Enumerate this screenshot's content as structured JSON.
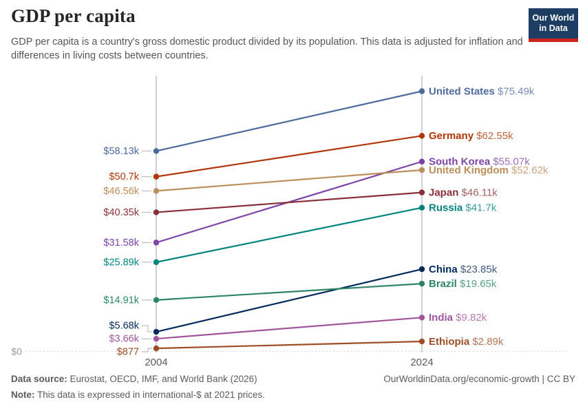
{
  "header": {
    "title": "GDP per capita",
    "subtitle": "GDP per capita is a country's gross domestic product divided by its population. This data is adjusted for inflation and differences in living costs between countries.",
    "logo": {
      "line1": "Our World",
      "line2": "in Data",
      "bg_color": "#1D3D63",
      "accent_color": "#D0241E"
    }
  },
  "chart_data": {
    "type": "line",
    "subtype": "slope",
    "x": [
      "2004",
      "2024"
    ],
    "ylim": [
      0,
      80000
    ],
    "grid": "baseline-dotted-only",
    "zero_label": "$0",
    "legend_position": "end-of-line-labels",
    "series": [
      {
        "name": "United States",
        "color": "#4C6A9C",
        "values": [
          58130,
          75490
        ],
        "start_label": "$58.13k",
        "end_label": "$75.49k"
      },
      {
        "name": "Germany",
        "color": "#B13507",
        "values": [
          50700,
          62550
        ],
        "start_label": "$50.7k",
        "end_label": "$62.55k"
      },
      {
        "name": "South Korea",
        "color": "#7E43A8",
        "values": [
          31580,
          55070
        ],
        "start_label": "$31.58k",
        "end_label": "$55.07k"
      },
      {
        "name": "United Kingdom",
        "color": "#BC8E5A",
        "values": [
          46560,
          52620
        ],
        "start_label": "$46.56k",
        "end_label": "$52.62k"
      },
      {
        "name": "Japan",
        "color": "#883039",
        "values": [
          40350,
          46110
        ],
        "start_label": "$40.35k",
        "end_label": "$46.11k"
      },
      {
        "name": "Russia",
        "color": "#00847E",
        "values": [
          25890,
          41700
        ],
        "start_label": "$25.89k",
        "end_label": "$41.7k"
      },
      {
        "name": "China",
        "color": "#00295B",
        "values": [
          5680,
          23850
        ],
        "start_label": "$5.68k",
        "end_label": "$23.85k",
        "start_label_dy": -9
      },
      {
        "name": "Brazil",
        "color": "#2C8565",
        "values": [
          14910,
          19650
        ],
        "start_label": "$14.91k",
        "end_label": "$19.65k"
      },
      {
        "name": "India",
        "color": "#A2559C",
        "values": [
          3660,
          9820
        ],
        "start_label": "$3.66k",
        "end_label": "$9.82k"
      },
      {
        "name": "Ethiopia",
        "color": "#9E4E27",
        "values": [
          877,
          2890
        ],
        "start_label": "$877",
        "end_label": "$2.89k",
        "start_label_dy": 5
      }
    ]
  },
  "footer": {
    "data_source_label": "Data source:",
    "data_source_text": "Eurostat, OECD, IMF, and World Bank (2026)",
    "note_label": "Note:",
    "note_text": "This data is expressed in international-$ at 2021 prices.",
    "credit": "OurWorldinData.org/economic-growth | CC BY"
  }
}
